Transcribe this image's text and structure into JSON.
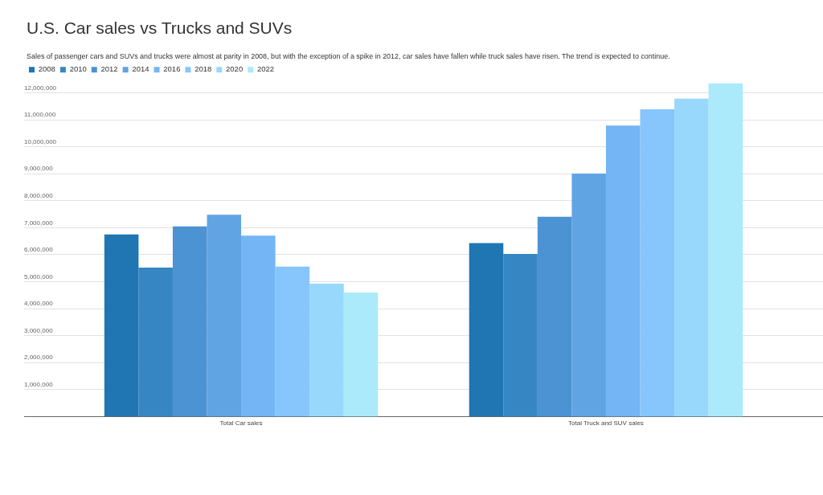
{
  "chart_data": {
    "type": "bar",
    "title": "U.S. Car sales vs Trucks and SUVs",
    "subtitle": "Sales of passenger cars and SUVs and trucks were almost at parity in 2008, but with the exception of a spike in 2012, car sales have fallen while truck sales have risen. The trend is expected to continue.",
    "categories": [
      "Total Car sales",
      "Total Truck and SUV sales"
    ],
    "series": [
      {
        "name": "2008",
        "color": "#1f76b3",
        "values": [
          6750000,
          6430000
        ]
      },
      {
        "name": "2010",
        "color": "#3786c4",
        "values": [
          5520000,
          6030000
        ]
      },
      {
        "name": "2012",
        "color": "#4b93d2",
        "values": [
          7050000,
          7410000
        ]
      },
      {
        "name": "2014",
        "color": "#61a4e3",
        "values": [
          7480000,
          9010000
        ]
      },
      {
        "name": "2016",
        "color": "#73b5f5",
        "values": [
          6710000,
          10790000
        ]
      },
      {
        "name": "2018",
        "color": "#86c6fc",
        "values": [
          5560000,
          11390000
        ]
      },
      {
        "name": "2020",
        "color": "#99d8fd",
        "values": [
          4930000,
          11790000
        ]
      },
      {
        "name": "2022",
        "color": "#aaeafb",
        "values": [
          4600000,
          12360000
        ]
      }
    ],
    "ylim": [
      0,
      12360000
    ],
    "yticks": [
      {
        "value": 1000000,
        "label": "1,000,000"
      },
      {
        "value": 2000000,
        "label": "2,000,000"
      },
      {
        "value": 3000000,
        "label": "3,000,000"
      },
      {
        "value": 4000000,
        "label": "4,000,000"
      },
      {
        "value": 5000000,
        "label": "5,000,000"
      },
      {
        "value": 6000000,
        "label": "6,000,000"
      },
      {
        "value": 7000000,
        "label": "7,000,000"
      },
      {
        "value": 8000000,
        "label": "8,000,000"
      },
      {
        "value": 9000000,
        "label": "9,000,000"
      },
      {
        "value": 10000000,
        "label": "10,000,000"
      },
      {
        "value": 11000000,
        "label": "11,000,000"
      },
      {
        "value": 12000000,
        "label": "12,000,000"
      }
    ],
    "grid": "y",
    "legend": "top left"
  }
}
